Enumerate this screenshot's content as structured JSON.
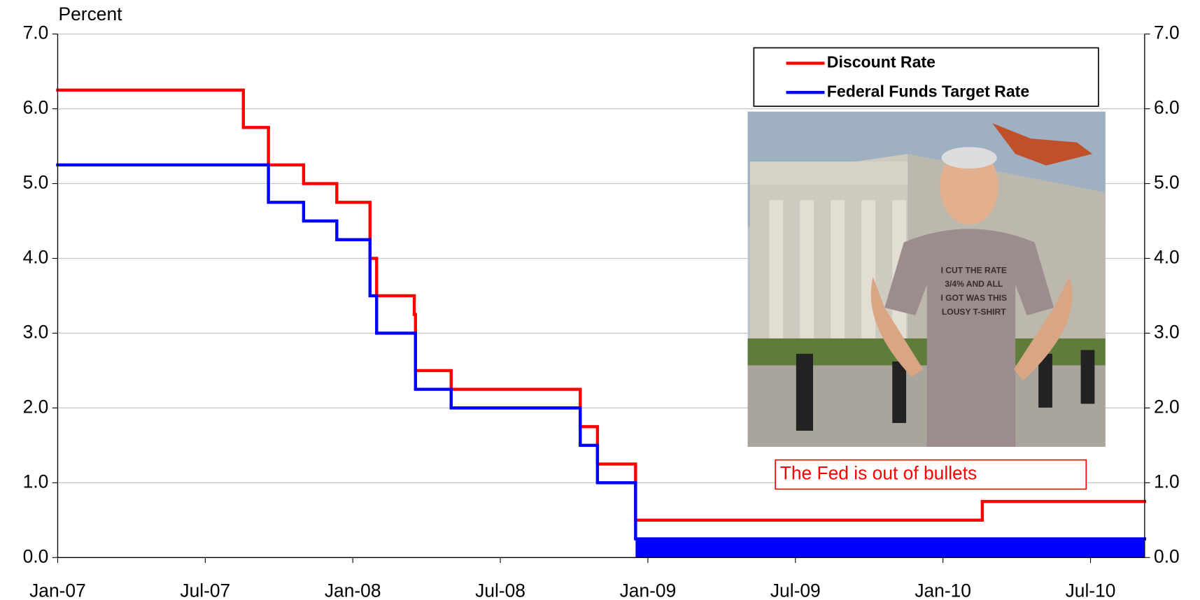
{
  "chart_data": {
    "type": "line",
    "step": "post",
    "axis_label": "Percent",
    "xlim": [
      0,
      44.2
    ],
    "xticks": [
      {
        "value": 0,
        "label": "Jan-07"
      },
      {
        "value": 6,
        "label": "Jul-07"
      },
      {
        "value": 12,
        "label": "Jan-08"
      },
      {
        "value": 18,
        "label": "Jul-08"
      },
      {
        "value": 24,
        "label": "Jan-09"
      },
      {
        "value": 30,
        "label": "Jul-09"
      },
      {
        "value": 36,
        "label": "Jan-10"
      },
      {
        "value": 42,
        "label": "Jul-10"
      }
    ],
    "ylim": [
      0,
      7
    ],
    "yticks": [
      {
        "value": 0,
        "label": "0.0"
      },
      {
        "value": 1,
        "label": "1.0"
      },
      {
        "value": 2,
        "label": "2.0"
      },
      {
        "value": 3,
        "label": "3.0"
      },
      {
        "value": 4,
        "label": "4.0"
      },
      {
        "value": 5,
        "label": "5.0"
      },
      {
        "value": 6,
        "label": "6.0"
      },
      {
        "value": 7,
        "label": "7.0"
      }
    ],
    "y2lim": [
      0,
      7
    ],
    "y2ticks": [
      {
        "value": 0,
        "label": "0.0"
      },
      {
        "value": 1,
        "label": "1.0"
      },
      {
        "value": 2,
        "label": "2.0"
      },
      {
        "value": 3,
        "label": "3.0"
      },
      {
        "value": 4,
        "label": "4.0"
      },
      {
        "value": 5,
        "label": "5.0"
      },
      {
        "value": 6,
        "label": "6.0"
      },
      {
        "value": 7,
        "label": "7.0"
      }
    ],
    "grid": true,
    "legend": "upper right",
    "series": [
      {
        "name": "Discount Rate",
        "color": "#ff0000",
        "x": [
          0,
          7.55,
          8.57,
          10.0,
          11.35,
          12.7,
          12.97,
          14.5,
          14.55,
          16.0,
          21.25,
          21.95,
          23.5,
          37.6
        ],
        "values": [
          6.25,
          5.75,
          5.25,
          5.0,
          4.75,
          4.0,
          3.5,
          3.25,
          2.5,
          2.25,
          1.75,
          1.25,
          0.5,
          0.75
        ]
      },
      {
        "name": "Federal Funds Target Rate",
        "color": "#0000ff",
        "x": [
          0,
          8.57,
          10.0,
          11.35,
          12.7,
          12.97,
          14.55,
          16.0,
          21.25,
          21.95,
          23.5
        ],
        "values": [
          5.25,
          4.75,
          4.5,
          4.25,
          3.5,
          3.0,
          2.25,
          2.0,
          1.5,
          1.0,
          0.25
        ],
        "band_low": 0
      }
    ],
    "annotation": "The Fed is out of bullets",
    "image_text": [
      "I CUT THE RATE",
      "3/4% AND ALL",
      "I GOT WAS THIS",
      "LOUSY T-SHIRT"
    ]
  }
}
